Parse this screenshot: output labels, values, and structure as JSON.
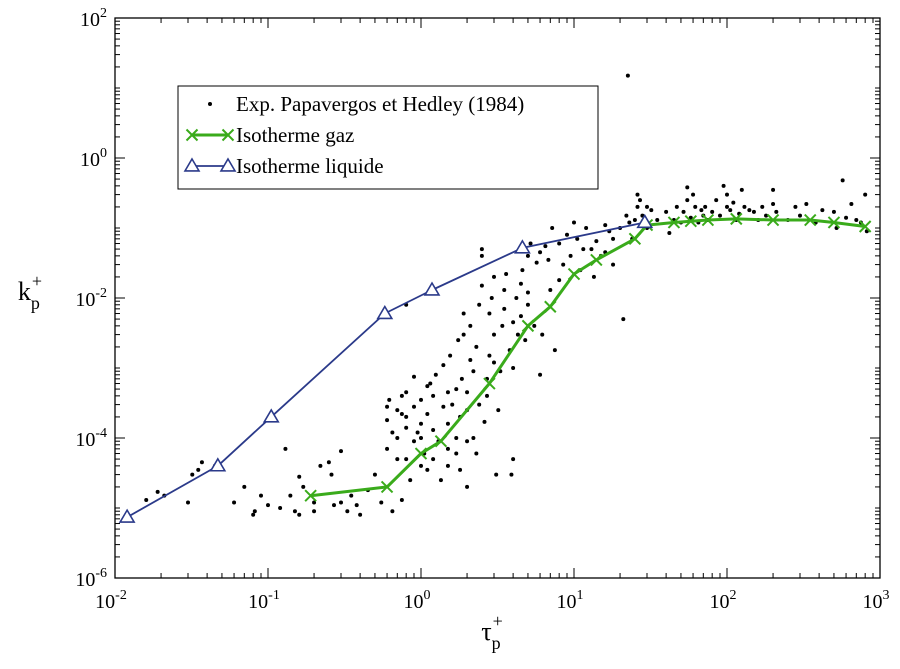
{
  "chart_data": {
    "type": "scatter",
    "title": "",
    "xlabel": {
      "base": "τ",
      "sub": "p",
      "sup": "+"
    },
    "ylabel": {
      "base": "k",
      "sub": "p",
      "sup": "+"
    },
    "xscale": "log",
    "yscale": "log",
    "xlim": [
      0.01,
      1000
    ],
    "ylim": [
      1e-06,
      100
    ],
    "x_ticks": [
      {
        "base": "10",
        "exp": "-2",
        "value": 0.01
      },
      {
        "base": "10",
        "exp": "-1",
        "value": 0.1
      },
      {
        "base": "10",
        "exp": "0",
        "value": 1
      },
      {
        "base": "10",
        "exp": "1",
        "value": 10
      },
      {
        "base": "10",
        "exp": "2",
        "value": 100
      },
      {
        "base": "10",
        "exp": "3",
        "value": 1000
      }
    ],
    "y_ticks": [
      {
        "base": "10",
        "exp": "-6",
        "value": 1e-06
      },
      {
        "base": "10",
        "exp": "-4",
        "value": 0.0001
      },
      {
        "base": "10",
        "exp": "-2",
        "value": 0.01
      },
      {
        "base": "10",
        "exp": "0",
        "value": 1
      },
      {
        "base": "10",
        "exp": "2",
        "value": 100
      }
    ],
    "grid": false,
    "legend_position": "top-left",
    "series": [
      {
        "name": "Exp. Papavergos et Hedley (1984)",
        "kind": "scatter",
        "marker": "dot",
        "color": "#000000",
        "points": [
          [
            0.016,
            1.3e-05
          ],
          [
            0.019,
            1.7e-05
          ],
          [
            0.021,
            1.5e-05
          ],
          [
            0.03,
            1.2e-05
          ],
          [
            0.032,
            3e-05
          ],
          [
            0.035,
            3.5e-05
          ],
          [
            0.037,
            4.5e-05
          ],
          [
            0.045,
            4e-05
          ],
          [
            0.06,
            1.2e-05
          ],
          [
            0.07,
            2e-05
          ],
          [
            0.08,
            8e-06
          ],
          [
            0.082,
            9e-06
          ],
          [
            0.09,
            1.5e-05
          ],
          [
            0.1,
            1.1e-05
          ],
          [
            0.12,
            1e-05
          ],
          [
            0.13,
            7e-05
          ],
          [
            0.14,
            1.5e-05
          ],
          [
            0.15,
            9e-06
          ],
          [
            0.16,
            8e-06
          ],
          [
            0.16,
            2.8e-05
          ],
          [
            0.17,
            2e-05
          ],
          [
            0.2,
            1.2e-05
          ],
          [
            0.2,
            9e-06
          ],
          [
            0.22,
            4e-05
          ],
          [
            0.25,
            4.5e-05
          ],
          [
            0.26,
            3e-05
          ],
          [
            0.27,
            1.1e-05
          ],
          [
            0.3,
            1.2e-05
          ],
          [
            0.3,
            6.5e-05
          ],
          [
            0.33,
            9e-06
          ],
          [
            0.35,
            1.5e-05
          ],
          [
            0.38,
            1.1e-05
          ],
          [
            0.4,
            8e-06
          ],
          [
            0.45,
            1.8e-05
          ],
          [
            0.5,
            3e-05
          ],
          [
            0.55,
            1.2e-05
          ],
          [
            0.6,
            7e-05
          ],
          [
            0.6,
            0.00018
          ],
          [
            0.6,
            0.00028
          ],
          [
            0.62,
            0.00035
          ],
          [
            0.65,
            0.00012
          ],
          [
            0.65,
            9e-06
          ],
          [
            0.7,
            0.0001
          ],
          [
            0.7,
            0.00025
          ],
          [
            0.7,
            5e-05
          ],
          [
            0.75,
            0.00022
          ],
          [
            0.75,
            0.0004
          ],
          [
            0.75,
            1.3e-05
          ],
          [
            0.8,
            5e-05
          ],
          [
            0.8,
            0.00014
          ],
          [
            0.8,
            0.0002
          ],
          [
            0.8,
            0.00045
          ],
          [
            0.8,
            0.008
          ],
          [
            0.85,
            2.5e-05
          ],
          [
            0.9,
            9e-05
          ],
          [
            0.9,
            0.00028
          ],
          [
            0.9,
            0.00075
          ],
          [
            0.95,
            0.00012
          ],
          [
            1,
            4e-05
          ],
          [
            1,
            0.0001
          ],
          [
            1,
            0.00016
          ],
          [
            1,
            0.00035
          ],
          [
            1.05,
            6e-05
          ],
          [
            1.1,
            0.00022
          ],
          [
            1.1,
            0.00055
          ],
          [
            1.1,
            3.5e-05
          ],
          [
            1.15,
            0.0006
          ],
          [
            1.2,
            5e-05
          ],
          [
            1.2,
            0.00013
          ],
          [
            1.2,
            0.0004
          ],
          [
            1.25,
            0.0008
          ],
          [
            1.3,
            9e-05
          ],
          [
            1.35,
            2.5e-05
          ],
          [
            1.4,
            0.00028
          ],
          [
            1.4,
            0.0011
          ],
          [
            1.5,
            4e-05
          ],
          [
            1.5,
            7e-05
          ],
          [
            1.5,
            0.00016
          ],
          [
            1.5,
            0.00045
          ],
          [
            1.55,
            0.0015
          ],
          [
            1.6,
            0.0003
          ],
          [
            1.7,
            6e-05
          ],
          [
            1.7,
            0.0001
          ],
          [
            1.7,
            0.0005
          ],
          [
            1.75,
            0.0025
          ],
          [
            1.8,
            3.5e-05
          ],
          [
            1.8,
            0.0002
          ],
          [
            1.85,
            0.0007
          ],
          [
            1.9,
            0.003
          ],
          [
            1.9,
            0.006
          ],
          [
            2,
            2e-05
          ],
          [
            2,
            9e-05
          ],
          [
            2,
            0.00025
          ],
          [
            2,
            0.00045
          ],
          [
            2.1,
            0.0013
          ],
          [
            2.1,
            0.004
          ],
          [
            2.2,
            0.0001
          ],
          [
            2.2,
            0.0009
          ],
          [
            2.3,
            6e-05
          ],
          [
            2.3,
            0.002
          ],
          [
            2.4,
            0.008
          ],
          [
            2.4,
            0.0003
          ],
          [
            2.5,
            0.015
          ],
          [
            2.5,
            0.04
          ],
          [
            2.5,
            0.05
          ],
          [
            2.6,
            0.00017
          ],
          [
            2.7,
            0.0004
          ],
          [
            2.7,
            0.0007
          ],
          [
            2.8,
            0.0015
          ],
          [
            2.8,
            0.006
          ],
          [
            2.9,
            0.01
          ],
          [
            3,
            0.02
          ],
          [
            3,
            0.003
          ],
          [
            3,
            0.0012
          ],
          [
            3.1,
            3e-05
          ],
          [
            3.2,
            0.00025
          ],
          [
            3.3,
            0.0009
          ],
          [
            3.4,
            0.004
          ],
          [
            3.5,
            0.007
          ],
          [
            3.5,
            0.013
          ],
          [
            3.6,
            0.022
          ],
          [
            3.8,
            0.0018
          ],
          [
            3.9,
            3e-05
          ],
          [
            4,
            5e-05
          ],
          [
            4,
            0.001
          ],
          [
            4,
            0.0045
          ],
          [
            4.2,
            0.01
          ],
          [
            4.3,
            0.003
          ],
          [
            4.5,
            0.0055
          ],
          [
            4.5,
            0.016
          ],
          [
            4.6,
            0.025
          ],
          [
            4.8,
            0.0025
          ],
          [
            5,
            0.008
          ],
          [
            5,
            0.012
          ],
          [
            5,
            0.04
          ],
          [
            5.2,
            0.06
          ],
          [
            5.5,
            0.004
          ],
          [
            5.7,
            0.032
          ],
          [
            6,
            0.0008
          ],
          [
            6,
            0.045
          ],
          [
            6.2,
            0.003
          ],
          [
            6.5,
            0.055
          ],
          [
            6.8,
            0.035
          ],
          [
            7,
            0.013
          ],
          [
            7.2,
            0.1
          ],
          [
            7.5,
            0.0018
          ],
          [
            8,
            0.018
          ],
          [
            8,
            0.06
          ],
          [
            8.5,
            0.03
          ],
          [
            9,
            0.08
          ],
          [
            9.5,
            0.04
          ],
          [
            10,
            0.12
          ],
          [
            10.5,
            0.07
          ],
          [
            11,
            0.025
          ],
          [
            11.5,
            0.05
          ],
          [
            12,
            0.1
          ],
          [
            13,
            0.05
          ],
          [
            13.5,
            0.02
          ],
          [
            14,
            0.065
          ],
          [
            15,
            0.04
          ],
          [
            16,
            0.11
          ],
          [
            16,
            0.045
          ],
          [
            17,
            0.09
          ],
          [
            18,
            0.03
          ],
          [
            18,
            0.07
          ],
          [
            20,
            0.1
          ],
          [
            21,
            0.005
          ],
          [
            22,
            0.15
          ],
          [
            22.5,
            15
          ],
          [
            23,
            0.12
          ],
          [
            24,
            0.07
          ],
          [
            25,
            0.13
          ],
          [
            26,
            0.2
          ],
          [
            26,
            0.3
          ],
          [
            27,
            0.25
          ],
          [
            28,
            0.15
          ],
          [
            30,
            0.2
          ],
          [
            30,
            0.1
          ],
          [
            32,
            0.18
          ],
          [
            35,
            0.13
          ],
          [
            40,
            0.17
          ],
          [
            42,
            0.085
          ],
          [
            45,
            0.13
          ],
          [
            47,
            0.2
          ],
          [
            50,
            0.12
          ],
          [
            52,
            0.17
          ],
          [
            55,
            0.25
          ],
          [
            55,
            0.38
          ],
          [
            58,
            0.14
          ],
          [
            60,
            0.3
          ],
          [
            62,
            0.2
          ],
          [
            65,
            0.12
          ],
          [
            68,
            0.18
          ],
          [
            70,
            0.15
          ],
          [
            72,
            0.2
          ],
          [
            75,
            0.13
          ],
          [
            80,
            0.17
          ],
          [
            85,
            0.25
          ],
          [
            90,
            0.15
          ],
          [
            95,
            0.4
          ],
          [
            100,
            0.2
          ],
          [
            100,
            0.3
          ],
          [
            105,
            0.18
          ],
          [
            110,
            0.23
          ],
          [
            115,
            0.13
          ],
          [
            120,
            0.16
          ],
          [
            125,
            0.35
          ],
          [
            130,
            0.2
          ],
          [
            140,
            0.18
          ],
          [
            150,
            0.17
          ],
          [
            160,
            0.13
          ],
          [
            170,
            0.2
          ],
          [
            180,
            0.15
          ],
          [
            200,
            0.35
          ],
          [
            200,
            0.22
          ],
          [
            210,
            0.17
          ],
          [
            250,
            0.13
          ],
          [
            280,
            0.2
          ],
          [
            300,
            0.15
          ],
          [
            330,
            0.22
          ],
          [
            380,
            0.12
          ],
          [
            420,
            0.18
          ],
          [
            500,
            0.17
          ],
          [
            520,
            0.1
          ],
          [
            570,
            0.48
          ],
          [
            600,
            0.14
          ],
          [
            650,
            0.22
          ],
          [
            700,
            0.13
          ],
          [
            750,
            0.12
          ],
          [
            800,
            0.3
          ],
          [
            820,
            0.09
          ]
        ]
      },
      {
        "name": "Isotherme gaz",
        "kind": "line",
        "marker": "x",
        "color": "#3aab1b",
        "points": [
          [
            0.19,
            1.5e-05
          ],
          [
            0.6,
            2e-05
          ],
          [
            1,
            6e-05
          ],
          [
            1.35,
            9e-05
          ],
          [
            2.8,
            0.0006
          ],
          [
            5,
            0.004
          ],
          [
            7,
            0.0075
          ],
          [
            10,
            0.022
          ],
          [
            14,
            0.035
          ],
          [
            25,
            0.07
          ],
          [
            30,
            0.11
          ],
          [
            45,
            0.12
          ],
          [
            58,
            0.125
          ],
          [
            75,
            0.13
          ],
          [
            115,
            0.135
          ],
          [
            200,
            0.13
          ],
          [
            350,
            0.13
          ],
          [
            500,
            0.12
          ],
          [
            800,
            0.105
          ]
        ]
      },
      {
        "name": "Isotherme liquide",
        "kind": "line",
        "marker": "triangle",
        "color": "#2b3a8a",
        "points": [
          [
            0.012,
            7.4e-06
          ],
          [
            0.047,
            4e-05
          ],
          [
            0.105,
            0.0002
          ],
          [
            0.58,
            0.006
          ],
          [
            1.18,
            0.013
          ],
          [
            4.6,
            0.052
          ],
          [
            29,
            0.12
          ]
        ]
      }
    ]
  }
}
